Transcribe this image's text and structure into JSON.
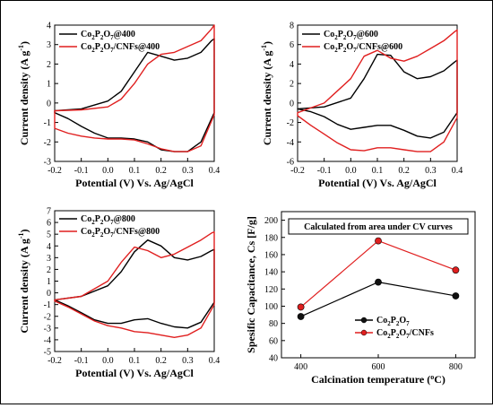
{
  "colors": {
    "black_series": "#000000",
    "red_series": "#e01f1f",
    "marker_black": "#111111",
    "marker_red": "#e01f1f"
  },
  "chart_data": [
    {
      "type": "line",
      "panel": "cv-400",
      "xlabel": "Potential (V) Vs. Ag/AgCl",
      "ylabel": "Current density (A g⁻¹)",
      "xlim": [
        -0.2,
        0.4
      ],
      "ylim": [
        -3,
        4
      ],
      "xticks": [
        "-0.2",
        "-0.1",
        "0.0",
        "0.1",
        "0.2",
        "0.3",
        "0.4"
      ],
      "yticks": [
        "-3",
        "-2",
        "-1",
        "0",
        "1",
        "2",
        "3",
        "4"
      ],
      "legend_position": "top-left",
      "series": [
        {
          "name": "Co2P2O7@400",
          "legend_html": "Co<tspan dy='3' font-size='7'>2</tspan><tspan dy='-3'>P</tspan><tspan dy='3' font-size='7'>2</tspan><tspan dy='-3'>O</tspan><tspan dy='3' font-size='7'>7</tspan><tspan dy='-3'>@400</tspan>",
          "x": [
            -0.2,
            -0.1,
            0.0,
            0.05,
            0.1,
            0.15,
            0.2,
            0.25,
            0.3,
            0.35,
            0.39,
            0.4,
            0.4,
            0.35,
            0.3,
            0.25,
            0.2,
            0.15,
            0.1,
            0.05,
            0.0,
            -0.05,
            -0.1,
            -0.15,
            -0.2
          ],
          "y": [
            -0.4,
            -0.3,
            0.1,
            0.6,
            1.6,
            2.6,
            2.4,
            2.2,
            2.3,
            2.6,
            3.2,
            3.3,
            -0.5,
            -2.0,
            -2.5,
            -2.5,
            -2.4,
            -2.0,
            -1.85,
            -1.8,
            -1.8,
            -1.55,
            -1.2,
            -0.8,
            -0.5
          ]
        },
        {
          "name": "Co2P2O7/CNFs@400",
          "legend_html": "Co<tspan dy='3' font-size='7'>2</tspan><tspan dy='-3'>P</tspan><tspan dy='3' font-size='7'>2</tspan><tspan dy='-3'>O</tspan><tspan dy='3' font-size='7'>7</tspan><tspan dy='-3'>/CNFs@400</tspan>",
          "x": [
            -0.2,
            -0.1,
            0.0,
            0.05,
            0.1,
            0.15,
            0.2,
            0.25,
            0.3,
            0.35,
            0.39,
            0.4,
            0.4,
            0.35,
            0.3,
            0.25,
            0.2,
            0.15,
            0.1,
            0.05,
            0.0,
            -0.05,
            -0.1,
            -0.15,
            -0.2
          ],
          "y": [
            -0.4,
            -0.35,
            -0.2,
            0.2,
            1.0,
            2.0,
            2.5,
            2.6,
            2.9,
            3.2,
            3.8,
            4.0,
            -0.6,
            -2.2,
            -2.5,
            -2.5,
            -2.35,
            -2.1,
            -1.9,
            -1.85,
            -1.85,
            -1.8,
            -1.7,
            -1.55,
            -1.3
          ]
        }
      ]
    },
    {
      "type": "line",
      "panel": "cv-600",
      "xlabel": "Potential (V) Vs. Ag/AgCl",
      "ylabel": "Current density (A g⁻¹)",
      "xlim": [
        -0.2,
        0.4
      ],
      "ylim": [
        -6,
        8
      ],
      "xticks": [
        "-0.2",
        "-0.1",
        "0.0",
        "0.1",
        "0.2",
        "0.3",
        "0.4"
      ],
      "yticks": [
        "-6",
        "-4",
        "-2",
        "0",
        "2",
        "4",
        "6",
        "8"
      ],
      "legend_position": "top-left",
      "series": [
        {
          "name": "Co2P2O7@600",
          "legend_html": "Co<tspan dy='3' font-size='7'>2</tspan><tspan dy='-3'>P</tspan><tspan dy='3' font-size='7'>2</tspan><tspan dy='-3'>O</tspan><tspan dy='3' font-size='7'>7</tspan><tspan dy='-3'>@600</tspan>",
          "x": [
            -0.2,
            -0.1,
            0.0,
            0.05,
            0.1,
            0.15,
            0.2,
            0.25,
            0.3,
            0.35,
            0.39,
            0.4,
            0.4,
            0.35,
            0.3,
            0.25,
            0.2,
            0.15,
            0.1,
            0.05,
            0.0,
            -0.05,
            -0.1,
            -0.15,
            -0.2
          ],
          "y": [
            -0.6,
            -0.4,
            0.5,
            2.5,
            5.0,
            4.9,
            3.2,
            2.5,
            2.7,
            3.3,
            4.2,
            4.4,
            -1.0,
            -3.0,
            -3.6,
            -3.4,
            -2.8,
            -2.3,
            -2.3,
            -2.5,
            -2.7,
            -2.2,
            -1.4,
            -0.9,
            -0.6
          ]
        },
        {
          "name": "Co2P2O7/CNFs@600",
          "legend_html": "Co<tspan dy='3' font-size='7'>2</tspan><tspan dy='-3'>P</tspan><tspan dy='3' font-size='7'>2</tspan><tspan dy='-3'>O</tspan><tspan dy='3' font-size='7'>7</tspan><tspan dy='-3'>/CNFs@600</tspan>",
          "x": [
            -0.2,
            -0.1,
            0.0,
            0.05,
            0.1,
            0.15,
            0.2,
            0.25,
            0.3,
            0.35,
            0.39,
            0.4,
            0.4,
            0.35,
            0.3,
            0.25,
            0.2,
            0.15,
            0.1,
            0.05,
            0.0,
            -0.05,
            -0.1,
            -0.15,
            -0.2
          ],
          "y": [
            -1.0,
            0.0,
            2.5,
            4.8,
            5.4,
            4.6,
            4.3,
            4.8,
            5.6,
            6.4,
            7.3,
            7.5,
            -1.5,
            -4.0,
            -5.0,
            -5.0,
            -4.8,
            -4.6,
            -4.6,
            -4.9,
            -4.8,
            -4.1,
            -3.2,
            -2.3,
            -1.3
          ]
        }
      ]
    },
    {
      "type": "line",
      "panel": "cv-800",
      "xlabel": "Potential (V) Vs. Ag/AgCl",
      "ylabel": "Current density (A g⁻¹)",
      "xlim": [
        -0.2,
        0.4
      ],
      "ylim": [
        -5,
        7
      ],
      "xticks": [
        "-0.2",
        "-0.1",
        "0.0",
        "0.1",
        "0.2",
        "0.3",
        "0.4"
      ],
      "yticks": [
        "-5",
        "-4",
        "-3",
        "-2",
        "-1",
        "0",
        "1",
        "2",
        "3",
        "4",
        "5",
        "6",
        "7"
      ],
      "legend_position": "top-left",
      "series": [
        {
          "name": "Co2P2O7@800",
          "legend_html": "Co<tspan dy='3' font-size='7'>2</tspan><tspan dy='-3'>P</tspan><tspan dy='3' font-size='7'>2</tspan><tspan dy='-3'>O</tspan><tspan dy='3' font-size='7'>7</tspan><tspan dy='-3'>@800</tspan>",
          "x": [
            -0.2,
            -0.1,
            0.0,
            0.05,
            0.1,
            0.15,
            0.2,
            0.25,
            0.3,
            0.35,
            0.39,
            0.4,
            0.4,
            0.35,
            0.3,
            0.25,
            0.2,
            0.15,
            0.1,
            0.05,
            0.0,
            -0.05,
            -0.1,
            -0.15,
            -0.2
          ],
          "y": [
            -0.6,
            -0.3,
            0.6,
            1.8,
            3.5,
            4.5,
            4.0,
            3.0,
            2.8,
            3.1,
            3.6,
            3.7,
            -0.8,
            -2.5,
            -3.0,
            -2.9,
            -2.6,
            -2.2,
            -2.3,
            -2.6,
            -2.6,
            -2.3,
            -1.7,
            -1.1,
            -0.6
          ]
        },
        {
          "name": "Co2P2O7/CNFs@800",
          "legend_html": "Co<tspan dy='3' font-size='7'>2</tspan><tspan dy='-3'>P</tspan><tspan dy='3' font-size='7'>2</tspan><tspan dy='-3'>O</tspan><tspan dy='3' font-size='7'>7</tspan><tspan dy='-3'>/CNFs@800</tspan>",
          "x": [
            -0.2,
            -0.1,
            0.0,
            0.05,
            0.1,
            0.15,
            0.2,
            0.25,
            0.3,
            0.35,
            0.39,
            0.4,
            0.4,
            0.35,
            0.3,
            0.25,
            0.2,
            0.15,
            0.1,
            0.05,
            0.0,
            -0.05,
            -0.1,
            -0.15,
            -0.2
          ],
          "y": [
            -0.6,
            -0.3,
            1.0,
            2.6,
            3.9,
            3.6,
            3.0,
            3.3,
            3.9,
            4.5,
            5.1,
            5.2,
            -1.0,
            -3.0,
            -3.6,
            -3.8,
            -3.6,
            -3.4,
            -3.3,
            -3.0,
            -2.8,
            -2.4,
            -1.8,
            -1.2,
            -0.7
          ]
        }
      ]
    },
    {
      "type": "line",
      "panel": "capacitance",
      "title": "Calculated from area under CV curves",
      "xlabel": "Calcination temperature (°C)",
      "ylabel": "Spesific Capacitance, Cs [F/g]",
      "xlim": [
        350,
        850
      ],
      "ylim": [
        40,
        210
      ],
      "xticks": [
        "400",
        "600",
        "800"
      ],
      "yticks": [
        "40",
        "60",
        "80",
        "100",
        "120",
        "140",
        "160",
        "180",
        "200"
      ],
      "legend_position": "lower-center",
      "categories": [
        400,
        600,
        800
      ],
      "series": [
        {
          "name": "Co2P2O7",
          "legend_html": "Co<tspan dy='3' font-size='7'>2</tspan><tspan dy='-3'>P</tspan><tspan dy='3' font-size='7'>2</tspan><tspan dy='-3'>O</tspan><tspan dy='3' font-size='7'>7</tspan>",
          "values": [
            88,
            128,
            112
          ]
        },
        {
          "name": "Co2P2O7/CNFs",
          "legend_html": "Co<tspan dy='3' font-size='7'>2</tspan><tspan dy='-3'>P</tspan><tspan dy='3' font-size='7'>2</tspan><tspan dy='-3'>O</tspan><tspan dy='3' font-size='7'>7</tspan><tspan dy='-3'>/CNFs</tspan>",
          "values": [
            99,
            176,
            142
          ]
        }
      ]
    }
  ]
}
